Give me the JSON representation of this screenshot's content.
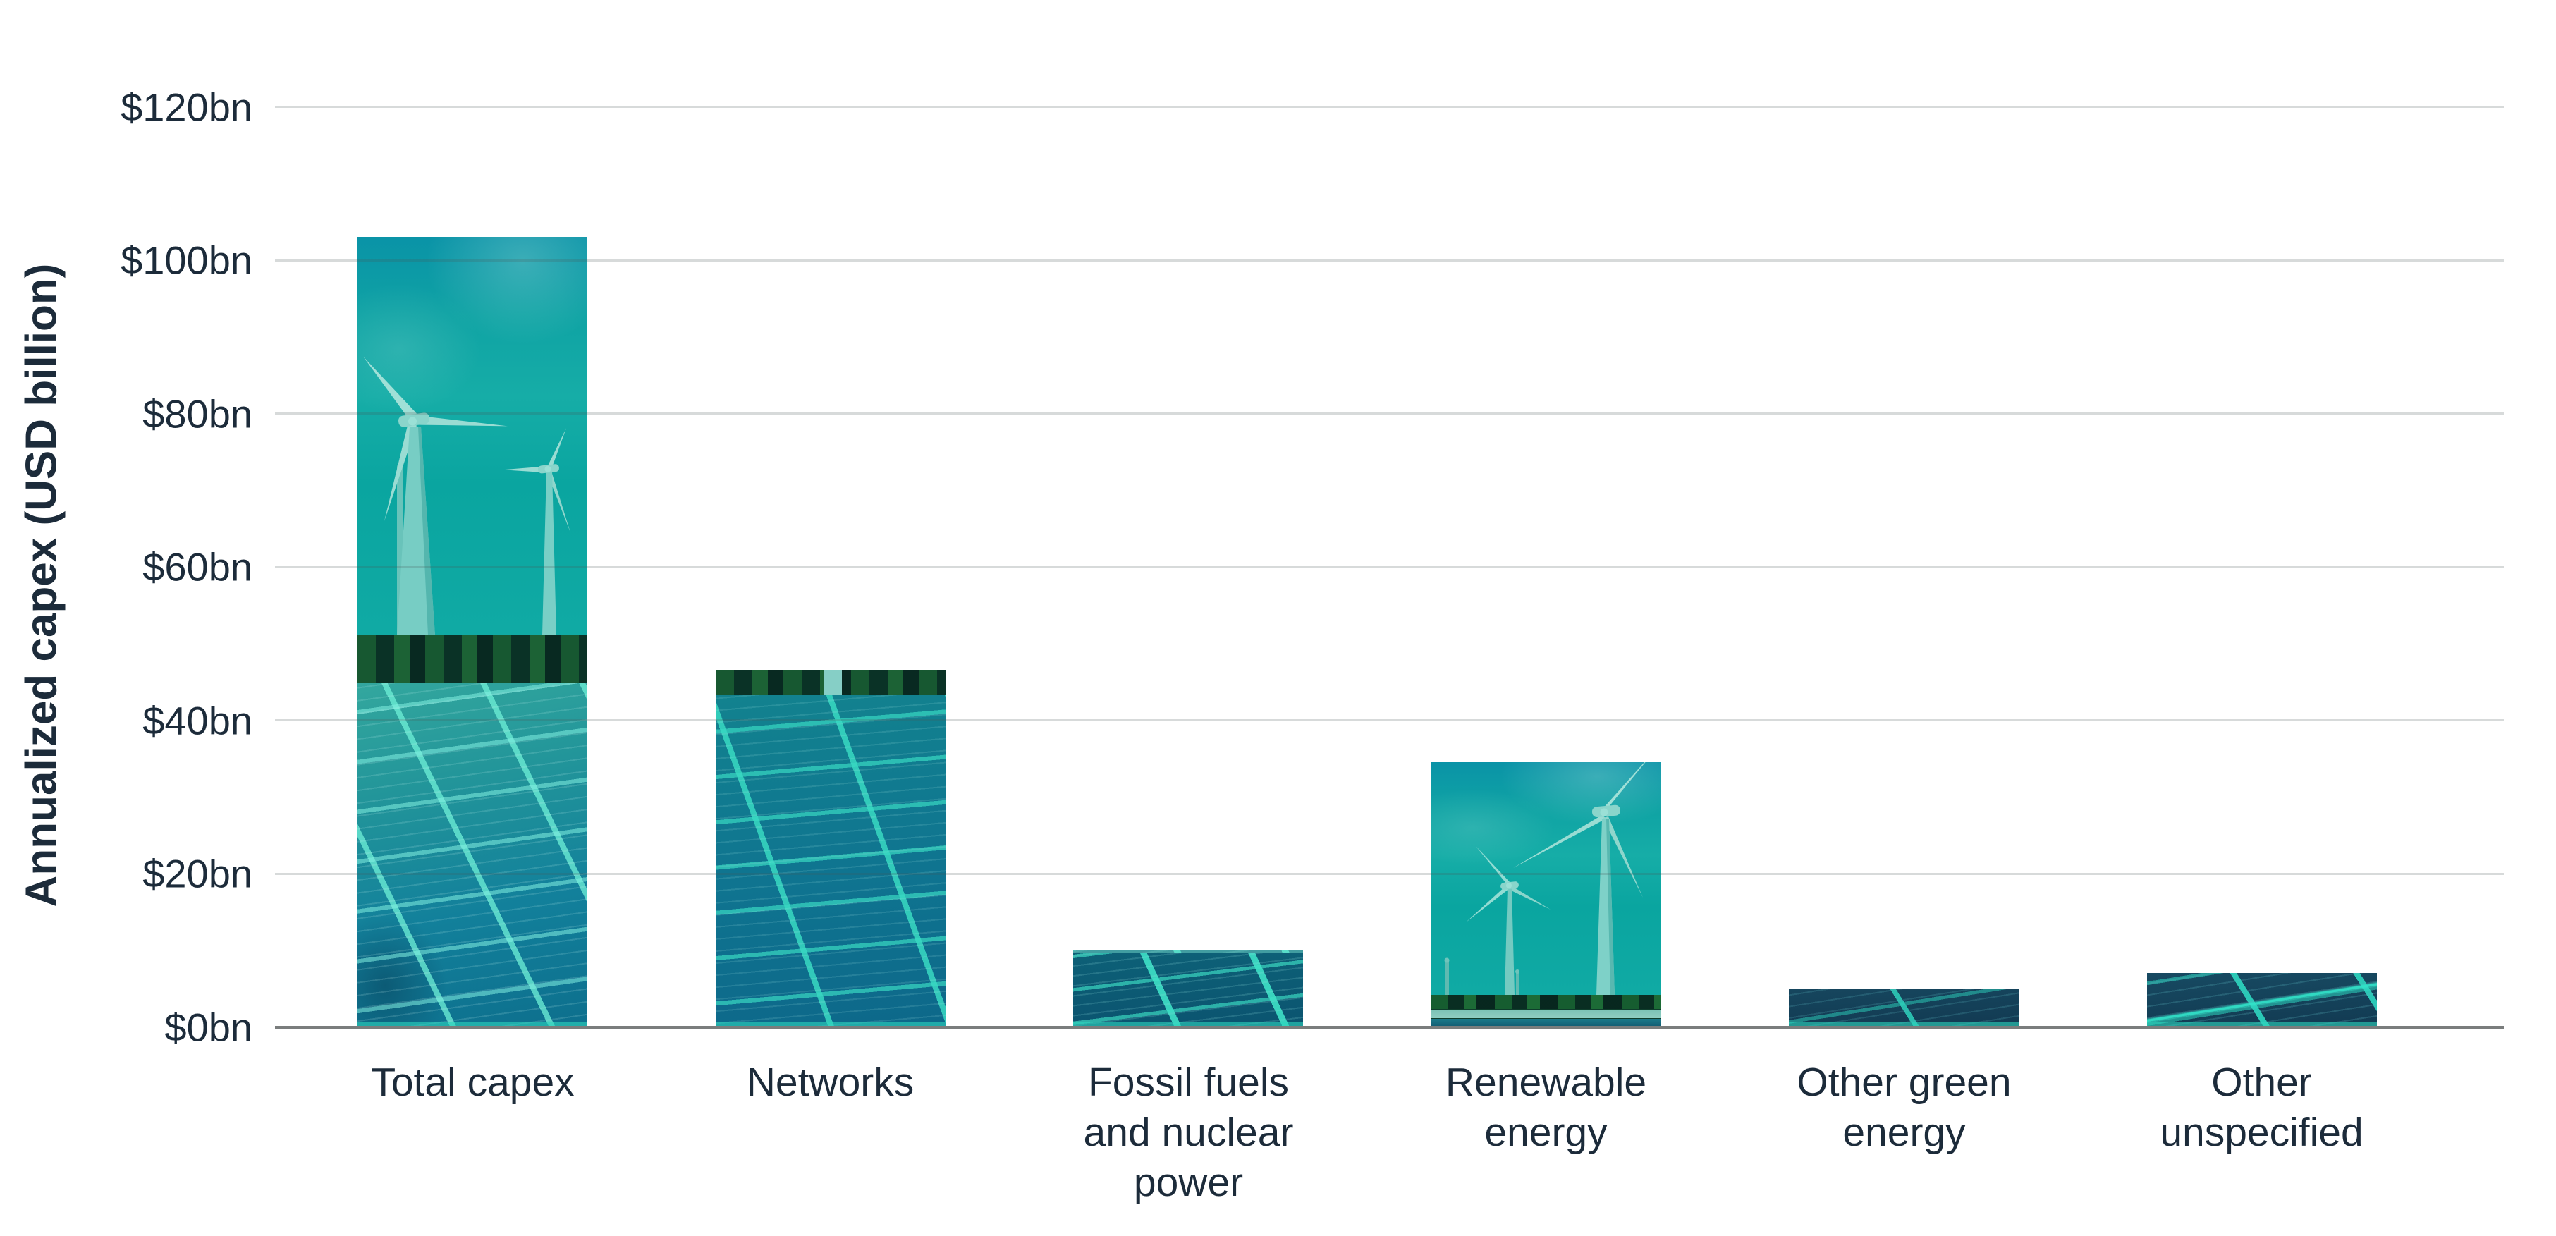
{
  "chart": {
    "y_axis": {
      "title": "Annualized capex (USD billion)",
      "ticks": [
        "$0bn",
        "$20bn",
        "$40bn",
        "$60bn",
        "$80bn",
        "$100bn",
        "$120bn"
      ]
    },
    "x_axis": {
      "categories": [
        {
          "label": "Total capex",
          "lines": [
            "Total capex"
          ]
        },
        {
          "label": "Networks",
          "lines": [
            "Networks"
          ]
        },
        {
          "label": "Fossil fuels and nuclear power",
          "lines": [
            "Fossil fuels",
            "and nuclear",
            "power"
          ]
        },
        {
          "label": "Renewable energy",
          "lines": [
            "Renewable",
            "energy"
          ]
        },
        {
          "label": "Other green energy",
          "lines": [
            "Other green",
            "energy"
          ]
        },
        {
          "label": "Other unspecified",
          "lines": [
            "Other",
            "unspecified"
          ]
        }
      ]
    }
  },
  "chart_data": {
    "type": "bar",
    "categories": [
      "Total capex",
      "Networks",
      "Fossil fuels and nuclear power",
      "Renewable energy",
      "Other green energy",
      "Other unspecified"
    ],
    "values": [
      103,
      46.5,
      10,
      34.5,
      5,
      7
    ],
    "title": "",
    "xlabel": "",
    "ylabel": "Annualized capex (USD billion)",
    "ylim": [
      0,
      120
    ],
    "ytick_step": 20,
    "ytick_format": "$<value>bn",
    "grid": true,
    "legend": false,
    "bar_fill_imagery": [
      "wind turbines above solar panel field, teal tinted photo",
      "solar panel field with treeline, teal tinted photo",
      "solar panels close-up, teal tinted photo",
      "wind turbines with ground band, teal tinted photo",
      "dark solar panels close-up, teal tinted photo",
      "dark solar panels close-up, teal tinted photo"
    ]
  },
  "theme": {
    "ink": "#1c2b3a",
    "teal_sky": "#0aa6a2",
    "teal_bright": "#38d9c2",
    "panel_mid": "#0f7490",
    "panel_dark": "#123a52",
    "gridline": "#d8d8d8",
    "axis_line": "#7a7d7d",
    "background": "#ffffff"
  }
}
